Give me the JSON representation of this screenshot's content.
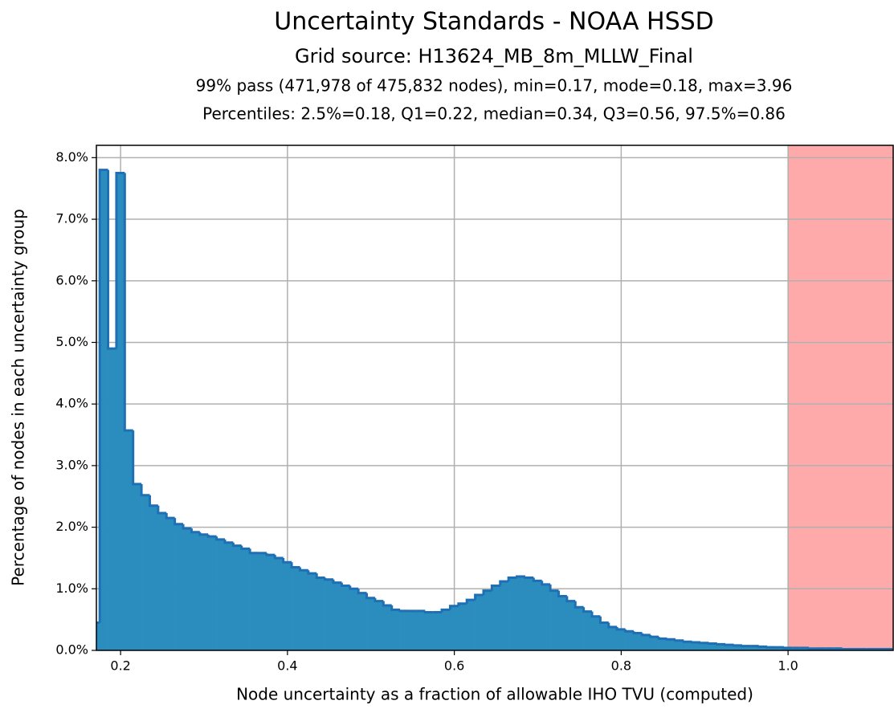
{
  "chart_data": {
    "type": "histogram",
    "title": "Uncertainty Standards - NOAA HSSD",
    "subtitle": "Grid source: H13624_MB_8m_MLLW_Final",
    "annotations": [
      "99% pass (471,978 of 475,832 nodes), min=0.17, mode=0.18, max=3.96",
      "Percentiles: 2.5%=0.18, Q1=0.22, median=0.34, Q3=0.56, 97.5%=0.86"
    ],
    "xlabel": "Node uncertainty as a fraction of allowable IHO TVU (computed)",
    "ylabel": "Percentage of nodes in each uncertainty group",
    "bins": [
      0.165,
      0.175,
      0.185,
      0.195,
      0.205,
      0.215,
      0.225,
      0.235,
      0.245,
      0.255,
      0.265,
      0.275,
      0.285,
      0.295,
      0.305,
      0.315,
      0.325,
      0.335,
      0.345,
      0.355,
      0.365,
      0.375,
      0.385,
      0.395,
      0.405,
      0.415,
      0.425,
      0.435,
      0.445,
      0.455,
      0.465,
      0.475,
      0.485,
      0.495,
      0.505,
      0.515,
      0.525,
      0.535,
      0.545,
      0.555,
      0.565,
      0.575,
      0.585,
      0.595,
      0.605,
      0.615,
      0.625,
      0.635,
      0.645,
      0.655,
      0.665,
      0.675,
      0.685,
      0.695,
      0.705,
      0.715,
      0.725,
      0.735,
      0.745,
      0.755,
      0.765,
      0.775,
      0.785,
      0.795,
      0.805,
      0.815,
      0.825,
      0.835,
      0.845,
      0.855,
      0.865,
      0.875,
      0.885,
      0.895,
      0.905,
      0.915,
      0.925,
      0.935,
      0.945,
      0.955,
      0.965,
      0.975,
      0.985,
      0.995,
      1.005,
      1.015,
      1.025,
      1.035,
      1.045,
      1.055,
      1.065,
      1.075,
      1.085,
      1.095,
      1.105,
      1.115,
      1.125
    ],
    "values": [
      0.45,
      7.8,
      4.9,
      7.75,
      3.57,
      2.7,
      2.52,
      2.35,
      2.23,
      2.15,
      2.05,
      1.98,
      1.92,
      1.88,
      1.85,
      1.8,
      1.75,
      1.7,
      1.65,
      1.58,
      1.58,
      1.55,
      1.5,
      1.43,
      1.35,
      1.3,
      1.25,
      1.18,
      1.15,
      1.1,
      1.05,
      1.0,
      0.93,
      0.85,
      0.8,
      0.73,
      0.66,
      0.64,
      0.64,
      0.64,
      0.62,
      0.62,
      0.66,
      0.72,
      0.76,
      0.82,
      0.9,
      0.97,
      1.05,
      1.12,
      1.18,
      1.2,
      1.18,
      1.13,
      1.07,
      0.97,
      0.88,
      0.8,
      0.7,
      0.63,
      0.55,
      0.45,
      0.38,
      0.34,
      0.31,
      0.28,
      0.25,
      0.22,
      0.19,
      0.18,
      0.16,
      0.14,
      0.13,
      0.12,
      0.11,
      0.1,
      0.09,
      0.08,
      0.07,
      0.07,
      0.06,
      0.05,
      0.05,
      0.04,
      0.04,
      0.04,
      0.03,
      0.03,
      0.03,
      0.03,
      0.02,
      0.02,
      0.02,
      0.02,
      0.02,
      0.02
    ],
    "color": "#2b8cbe",
    "edgecolor": "#1f6fb4",
    "fail_threshold": {
      "value": 1,
      "color": "#ffaaaa"
    },
    "xlim": [
      0.171,
      1.126
    ],
    "ylim": [
      0,
      8.2
    ],
    "xticks": [
      0.2,
      0.4,
      0.6,
      0.8,
      {
        "value": 1,
        "label": "1.0"
      }
    ],
    "yticks": [
      {
        "value": 0,
        "label": "0.0%"
      },
      {
        "value": 1,
        "label": "1.0%"
      },
      {
        "value": 2,
        "label": "2.0%"
      },
      {
        "value": 3,
        "label": "3.0%"
      },
      {
        "value": 4,
        "label": "4.0%"
      },
      {
        "value": 5,
        "label": "5.0%"
      },
      {
        "value": 6,
        "label": "6.0%"
      },
      {
        "value": 7,
        "label": "7.0%"
      },
      {
        "value": 8,
        "label": "8.0%"
      }
    ],
    "grid": true
  }
}
